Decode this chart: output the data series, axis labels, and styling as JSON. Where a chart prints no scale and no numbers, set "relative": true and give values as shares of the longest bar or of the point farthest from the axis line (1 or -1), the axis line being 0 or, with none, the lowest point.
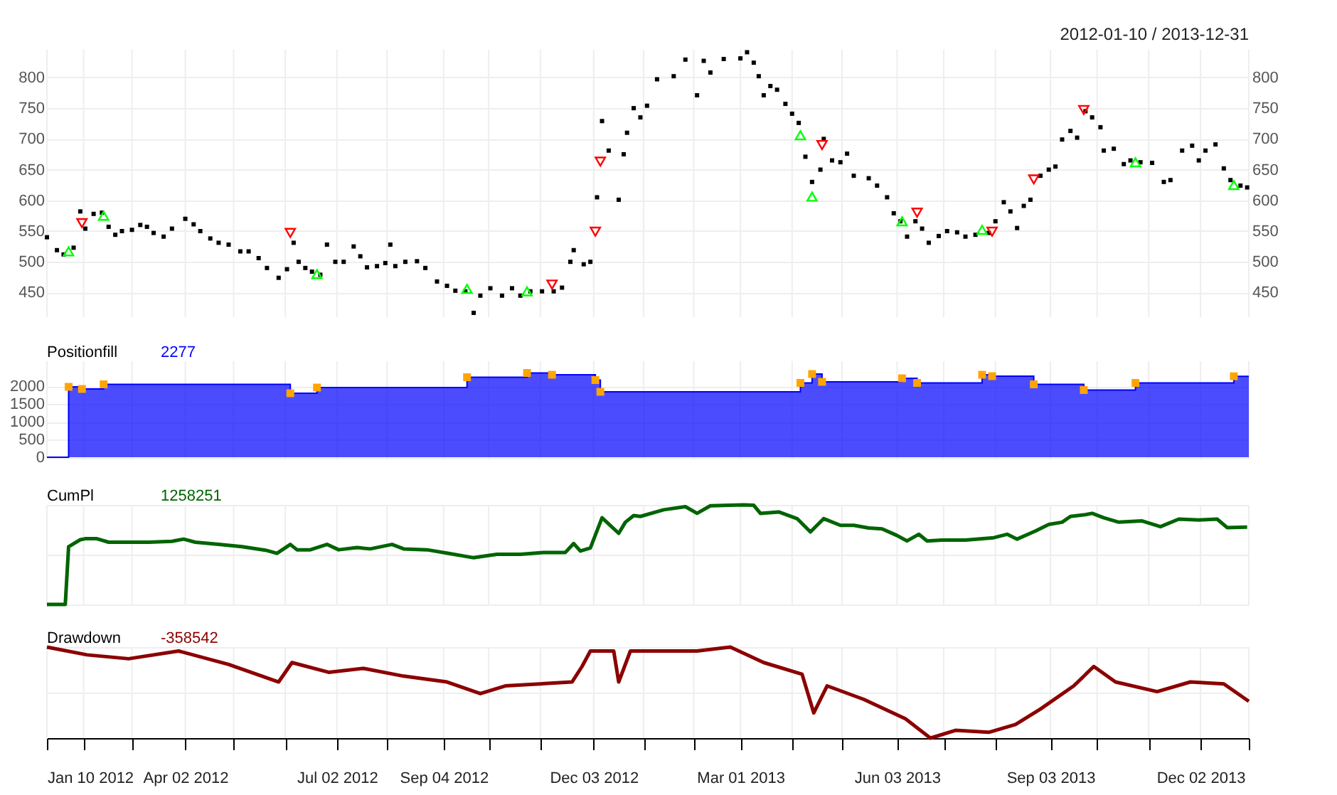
{
  "chart_data": [
    {
      "type": "scatter",
      "subtitle": "2012-01-10 / 2013-12-31",
      "xlim": [
        "2012-01-10",
        "2013-12-31"
      ],
      "xticks": [
        {
          "value": "2012-01-10",
          "label": null
        },
        {
          "value": "2012-02-01",
          "label": null
        },
        {
          "value": "2012-03-01",
          "label": null
        },
        {
          "value": "2012-04-02",
          "label": null
        },
        {
          "value": "2012-05-01",
          "label": null
        },
        {
          "value": "2012-06-01",
          "label": null
        },
        {
          "value": "2012-07-02",
          "label": null
        },
        {
          "value": "2012-08-01",
          "label": null
        },
        {
          "value": "2012-09-04",
          "label": null
        },
        {
          "value": "2012-10-01",
          "label": null
        },
        {
          "value": "2012-11-01",
          "label": null
        },
        {
          "value": "2012-12-03",
          "label": null
        },
        {
          "value": "2013-01-02",
          "label": null
        },
        {
          "value": "2013-02-01",
          "label": null
        },
        {
          "value": "2013-03-01",
          "label": null
        },
        {
          "value": "2013-04-01",
          "label": null
        },
        {
          "value": "2013-05-01",
          "label": null
        },
        {
          "value": "2013-06-03",
          "label": null
        },
        {
          "value": "2013-07-01",
          "label": null
        },
        {
          "value": "2013-08-01",
          "label": null
        },
        {
          "value": "2013-09-03",
          "label": null
        },
        {
          "value": "2013-10-01",
          "label": null
        },
        {
          "value": "2013-11-01",
          "label": null
        },
        {
          "value": "2013-12-02",
          "label": null
        },
        {
          "value": "2013-12-31",
          "label": null
        }
      ],
      "ylim": [
        410,
        845
      ],
      "yticks": [
        450,
        500,
        550,
        600,
        650,
        700,
        750,
        800
      ],
      "y2lim": [
        410,
        845
      ],
      "y2ticks": [
        450,
        500,
        550,
        600,
        650,
        700,
        750,
        800
      ],
      "grid": true,
      "tick_labels": "y",
      "series": [
        {
          "color": "#000000",
          "x": [
            "2012-01-10",
            "2012-01-16",
            "2012-01-20",
            "2012-01-26",
            "2012-01-30",
            "2012-02-02",
            "2012-02-07",
            "2012-02-12",
            "2012-02-16",
            "2012-02-20",
            "2012-02-24",
            "2012-03-01",
            "2012-03-06",
            "2012-03-10",
            "2012-03-14",
            "2012-03-20",
            "2012-03-25",
            "2012-04-02",
            "2012-04-07",
            "2012-04-11",
            "2012-04-17",
            "2012-04-22",
            "2012-04-28",
            "2012-05-05",
            "2012-05-10",
            "2012-05-16",
            "2012-05-21",
            "2012-05-28",
            "2012-06-02",
            "2012-06-06",
            "2012-06-09",
            "2012-06-13",
            "2012-06-17",
            "2012-06-22",
            "2012-06-26",
            "2012-07-01",
            "2012-07-06",
            "2012-07-12",
            "2012-07-16",
            "2012-07-20",
            "2012-07-26",
            "2012-07-31",
            "2012-08-03",
            "2012-08-06",
            "2012-08-12",
            "2012-08-19",
            "2012-08-24",
            "2012-08-31",
            "2012-09-06",
            "2012-09-11",
            "2012-09-17",
            "2012-09-22",
            "2012-09-26",
            "2012-10-02",
            "2012-10-09",
            "2012-10-15",
            "2012-10-20",
            "2012-10-26",
            "2012-11-02",
            "2012-11-09",
            "2012-11-14",
            "2012-11-19",
            "2012-11-21",
            "2012-11-27",
            "2012-12-01",
            "2012-12-05",
            "2012-12-08",
            "2012-12-12",
            "2012-12-18",
            "2012-12-21",
            "2012-12-23",
            "2012-12-27",
            "2012-12-31",
            "2013-01-04",
            "2013-01-10",
            "2013-01-20",
            "2013-01-27",
            "2013-02-03",
            "2013-02-07",
            "2013-02-11",
            "2013-02-19",
            "2013-03-01",
            "2013-03-05",
            "2013-03-09",
            "2013-03-12",
            "2013-03-15",
            "2013-03-19",
            "2013-03-23",
            "2013-03-28",
            "2013-04-01",
            "2013-04-05",
            "2013-04-09",
            "2013-04-13",
            "2013-04-18",
            "2013-04-20",
            "2013-04-25",
            "2013-04-30",
            "2013-05-04",
            "2013-05-08",
            "2013-05-17",
            "2013-05-22",
            "2013-05-28",
            "2013-06-01",
            "2013-06-05",
            "2013-06-09",
            "2013-06-14",
            "2013-06-18",
            "2013-06-22",
            "2013-06-28",
            "2013-07-03",
            "2013-07-09",
            "2013-07-14",
            "2013-07-20",
            "2013-07-28",
            "2013-08-01",
            "2013-08-06",
            "2013-08-10",
            "2013-08-14",
            "2013-08-18",
            "2013-08-22",
            "2013-08-28",
            "2013-09-02",
            "2013-09-06",
            "2013-09-10",
            "2013-09-15",
            "2013-09-19",
            "2013-09-24",
            "2013-09-28",
            "2013-10-03",
            "2013-10-05",
            "2013-10-11",
            "2013-10-17",
            "2013-10-21",
            "2013-10-27",
            "2013-11-03",
            "2013-11-10",
            "2013-11-14",
            "2013-11-21",
            "2013-11-27",
            "2013-12-01",
            "2013-12-05",
            "2013-12-11",
            "2013-12-16",
            "2013-12-20",
            "2013-12-26",
            "2013-12-30"
          ],
          "values": [
            540,
            519,
            512,
            523,
            582,
            554,
            578,
            580,
            557,
            544,
            550,
            552,
            560,
            557,
            547,
            541,
            554,
            570,
            561,
            550,
            538,
            531,
            528,
            517,
            517,
            506,
            490,
            474,
            488,
            531,
            500,
            490,
            484,
            479,
            528,
            500,
            500,
            525,
            509,
            491,
            493,
            498,
            528,
            493,
            500,
            501,
            490,
            468,
            461,
            453,
            452,
            417,
            445,
            457,
            445,
            457,
            445,
            452,
            452,
            452,
            458,
            500,
            519,
            496,
            500,
            605,
            729,
            681,
            601,
            675,
            710,
            750,
            735,
            754,
            797,
            802,
            829,
            771,
            827,
            808,
            830,
            831,
            841,
            824,
            802,
            771,
            786,
            780,
            757,
            741,
            726,
            671,
            630,
            650,
            700,
            665,
            662,
            676,
            640,
            636,
            624,
            605,
            579,
            566,
            541,
            566,
            554,
            531,
            542,
            550,
            548,
            541,
            544,
            547,
            566,
            597,
            582,
            555,
            591,
            601,
            640,
            650,
            655,
            699,
            713,
            702,
            745,
            735,
            719,
            681,
            684,
            659,
            665,
            662,
            661,
            630,
            633,
            681,
            689,
            665,
            681,
            691,
            652,
            633,
            624,
            621
          ]
        },
        {
          "color": "#00ff00",
          "marker": "triangle",
          "x": [
            "2012-01-23",
            "2012-02-13",
            "2012-06-20",
            "2012-09-18",
            "2012-10-24",
            "2013-04-06",
            "2013-04-13",
            "2013-06-06",
            "2013-07-24",
            "2013-10-24",
            "2013-12-22"
          ],
          "values": [
            517,
            575,
            480,
            456,
            452,
            706,
            606,
            566,
            552,
            662,
            625
          ]
        },
        {
          "color": "#ff0000",
          "marker": "triangle-down",
          "x": [
            "2012-01-31",
            "2012-06-04",
            "2012-11-08",
            "2012-12-04",
            "2012-12-07",
            "2013-04-19",
            "2013-06-15",
            "2013-07-30",
            "2013-08-24",
            "2013-09-23"
          ],
          "values": [
            563,
            547,
            463,
            549,
            663,
            690,
            580,
            549,
            634,
            747
          ]
        }
      ]
    },
    {
      "type": "step",
      "title": "Positionfill",
      "annotations": [
        "2277"
      ],
      "xlim": [
        "2012-01-10",
        "2013-12-31"
      ],
      "xticks": [
        {
          "value": "2012-01-10",
          "label": null
        },
        {
          "value": "2012-02-01",
          "label": null
        },
        {
          "value": "2012-03-01",
          "label": null
        },
        {
          "value": "2012-04-02",
          "label": null
        },
        {
          "value": "2012-05-01",
          "label": null
        },
        {
          "value": "2012-06-01",
          "label": null
        },
        {
          "value": "2012-07-02",
          "label": null
        },
        {
          "value": "2012-08-01",
          "label": null
        },
        {
          "value": "2012-09-04",
          "label": null
        },
        {
          "value": "2012-10-01",
          "label": null
        },
        {
          "value": "2012-11-01",
          "label": null
        },
        {
          "value": "2012-12-03",
          "label": null
        },
        {
          "value": "2013-01-02",
          "label": null
        },
        {
          "value": "2013-02-01",
          "label": null
        },
        {
          "value": "2013-03-01",
          "label": null
        },
        {
          "value": "2013-04-01",
          "label": null
        },
        {
          "value": "2013-05-01",
          "label": null
        },
        {
          "value": "2013-06-03",
          "label": null
        },
        {
          "value": "2013-07-01",
          "label": null
        },
        {
          "value": "2013-08-01",
          "label": null
        },
        {
          "value": "2013-09-03",
          "label": null
        },
        {
          "value": "2013-10-01",
          "label": null
        },
        {
          "value": "2013-11-01",
          "label": null
        },
        {
          "value": "2013-12-02",
          "label": null
        },
        {
          "value": "2013-12-31",
          "label": null
        }
      ],
      "ylim": [
        -20,
        2700
      ],
      "yticks": [
        0,
        500,
        1000,
        1500,
        2000
      ],
      "grid": true,
      "tick_labels": "y",
      "series": [
        {
          "type": "step",
          "color": "#0000ff",
          "x": [
            "2012-01-10",
            "2012-01-23",
            "2012-01-31",
            "2012-02-13",
            "2012-06-04",
            "2012-06-20",
            "2012-09-18",
            "2012-10-24",
            "2012-11-08",
            "2012-12-04",
            "2012-12-07",
            "2013-04-06",
            "2013-04-13",
            "2013-04-19",
            "2013-06-06",
            "2013-06-15",
            "2013-07-24",
            "2013-07-30",
            "2013-08-24",
            "2013-09-23",
            "2013-10-24",
            "2013-12-22",
            "2013-12-31"
          ],
          "values": [
            0,
            1980,
            1920,
            2050,
            1800,
            1960,
            2250,
            2370,
            2320,
            2170,
            1840,
            2090,
            2340,
            2120,
            2220,
            2090,
            2320,
            2280,
            2050,
            1890,
            2090,
            2277,
            2277
          ]
        },
        {
          "type": "scatter",
          "marker": "square",
          "color": "#ffa500",
          "x": [
            "2012-01-23",
            "2012-01-31",
            "2012-02-13",
            "2012-06-04",
            "2012-06-20",
            "2012-09-18",
            "2012-10-24",
            "2012-11-08",
            "2012-12-04",
            "2012-12-07",
            "2013-04-06",
            "2013-04-13",
            "2013-04-19",
            "2013-06-06",
            "2013-06-15",
            "2013-07-24",
            "2013-07-30",
            "2013-08-24",
            "2013-09-23",
            "2013-10-24",
            "2013-12-22"
          ],
          "values": [
            1980,
            1920,
            2050,
            1800,
            1960,
            2250,
            2370,
            2320,
            2170,
            1840,
            2090,
            2340,
            2120,
            2220,
            2090,
            2320,
            2280,
            2050,
            1890,
            2090,
            2277
          ]
        }
      ]
    },
    {
      "type": "line",
      "title": "CumPl",
      "annotations": [
        "1258251"
      ],
      "relative": true,
      "xlim": [
        "2012-01-10",
        "2013-12-31"
      ],
      "xticks": [
        {
          "value": "2012-01-10",
          "label": null
        },
        {
          "value": "2012-02-01",
          "label": null
        },
        {
          "value": "2012-03-01",
          "label": null
        },
        {
          "value": "2012-04-02",
          "label": null
        },
        {
          "value": "2012-05-01",
          "label": null
        },
        {
          "value": "2012-06-01",
          "label": null
        },
        {
          "value": "2012-07-02",
          "label": null
        },
        {
          "value": "2012-08-01",
          "label": null
        },
        {
          "value": "2012-09-04",
          "label": null
        },
        {
          "value": "2012-10-01",
          "label": null
        },
        {
          "value": "2012-11-01",
          "label": null
        },
        {
          "value": "2012-12-03",
          "label": null
        },
        {
          "value": "2013-01-02",
          "label": null
        },
        {
          "value": "2013-02-01",
          "label": null
        },
        {
          "value": "2013-03-01",
          "label": null
        },
        {
          "value": "2013-04-01",
          "label": null
        },
        {
          "value": "2013-05-01",
          "label": null
        },
        {
          "value": "2013-06-03",
          "label": null
        },
        {
          "value": "2013-07-01",
          "label": null
        },
        {
          "value": "2013-08-01",
          "label": null
        },
        {
          "value": "2013-09-03",
          "label": null
        },
        {
          "value": "2013-10-01",
          "label": null
        },
        {
          "value": "2013-11-01",
          "label": null
        },
        {
          "value": "2013-12-02",
          "label": null
        },
        {
          "value": "2013-12-31",
          "label": null
        }
      ],
      "grid": true,
      "tick_labels": false,
      "series": [
        {
          "color": "#006400",
          "x": [
            "2012-01-10",
            "2012-01-21",
            "2012-01-23",
            "2012-01-30",
            "2012-02-02",
            "2012-02-09",
            "2012-02-16",
            "2012-02-26",
            "2012-03-11",
            "2012-03-25",
            "2012-04-01",
            "2012-04-08",
            "2012-04-22",
            "2012-05-06",
            "2012-05-20",
            "2012-05-27",
            "2012-06-04",
            "2012-06-08",
            "2012-06-16",
            "2012-06-26",
            "2012-07-03",
            "2012-07-14",
            "2012-07-22",
            "2012-08-04",
            "2012-08-11",
            "2012-08-25",
            "2012-09-07",
            "2012-09-22",
            "2012-09-27",
            "2012-10-06",
            "2012-10-20",
            "2012-11-03",
            "2012-11-16",
            "2012-11-21",
            "2012-11-25",
            "2012-12-01",
            "2012-12-08",
            "2012-12-18",
            "2012-12-22",
            "2012-12-27",
            "2012-12-31",
            "2013-01-14",
            "2013-01-27",
            "2013-02-03",
            "2013-02-11",
            "2013-03-03",
            "2013-03-09",
            "2013-03-13",
            "2013-03-24",
            "2013-04-04",
            "2013-04-12",
            "2013-04-20",
            "2013-04-30",
            "2013-05-08",
            "2013-05-17",
            "2013-05-25",
            "2013-06-03",
            "2013-06-09",
            "2013-06-16",
            "2013-06-21",
            "2013-06-30",
            "2013-07-14",
            "2013-07-31",
            "2013-08-08",
            "2013-08-14",
            "2013-08-25",
            "2013-09-02",
            "2013-09-10",
            "2013-09-15",
            "2013-09-24",
            "2013-09-28",
            "2013-10-05",
            "2013-10-14",
            "2013-10-28",
            "2013-11-08",
            "2013-11-19",
            "2013-12-01",
            "2013-12-12",
            "2013-12-18",
            "2013-12-30"
          ],
          "values": [
            0,
            0,
            0.58,
            0.65,
            0.66,
            0.66,
            0.625,
            0.625,
            0.625,
            0.634,
            0.656,
            0.625,
            0.603,
            0.58,
            0.545,
            0.513,
            0.603,
            0.549,
            0.549,
            0.603,
            0.549,
            0.571,
            0.558,
            0.603,
            0.558,
            0.549,
            0.513,
            0.469,
            0.482,
            0.504,
            0.504,
            0.522,
            0.522,
            0.612,
            0.536,
            0.567,
            0.871,
            0.714,
            0.826,
            0.893,
            0.884,
            0.951,
            0.982,
            0.915,
            0.991,
            1.0,
            0.996,
            0.915,
            0.929,
            0.862,
            0.728,
            0.862,
            0.795,
            0.795,
            0.768,
            0.759,
            0.692,
            0.638,
            0.705,
            0.638,
            0.647,
            0.647,
            0.67,
            0.705,
            0.656,
            0.737,
            0.804,
            0.826,
            0.884,
            0.902,
            0.915,
            0.871,
            0.826,
            0.839,
            0.781,
            0.857,
            0.848,
            0.857,
            0.772,
            0.777
          ]
        }
      ]
    },
    {
      "type": "line",
      "title": "Drawdown",
      "annotations": [
        "-358542"
      ],
      "relative": true,
      "xlim": [
        "2012-01-10",
        "2013-12-31"
      ],
      "xticks": [
        {
          "value": "2012-01-10",
          "label": "Jan 10 2012"
        },
        {
          "value": "2012-02-01",
          "label": null
        },
        {
          "value": "2012-03-01",
          "label": null
        },
        {
          "value": "2012-04-02",
          "label": "Apr 02 2012"
        },
        {
          "value": "2012-05-01",
          "label": null
        },
        {
          "value": "2012-06-01",
          "label": null
        },
        {
          "value": "2012-07-02",
          "label": "Jul 02 2012"
        },
        {
          "value": "2012-08-01",
          "label": null
        },
        {
          "value": "2012-09-04",
          "label": "Sep 04 2012"
        },
        {
          "value": "2012-10-01",
          "label": null
        },
        {
          "value": "2012-11-01",
          "label": null
        },
        {
          "value": "2012-12-03",
          "label": "Dec 03 2012"
        },
        {
          "value": "2013-01-02",
          "label": null
        },
        {
          "value": "2013-02-01",
          "label": null
        },
        {
          "value": "2013-03-01",
          "label": "Mar 01 2013"
        },
        {
          "value": "2013-04-01",
          "label": null
        },
        {
          "value": "2013-05-01",
          "label": null
        },
        {
          "value": "2013-06-03",
          "label": "Jun 03 2013"
        },
        {
          "value": "2013-07-01",
          "label": null
        },
        {
          "value": "2013-08-01",
          "label": null
        },
        {
          "value": "2013-09-03",
          "label": "Sep 03 2013"
        },
        {
          "value": "2013-10-01",
          "label": null
        },
        {
          "value": "2013-11-01",
          "label": null
        },
        {
          "value": "2013-12-02",
          "label": "Dec 02 2013"
        },
        {
          "value": "2013-12-31",
          "label": null
        }
      ],
      "grid": true,
      "tick_labels": "x",
      "series": [
        {
          "color": "#8b0000",
          "x": [
            "2012-01-10",
            "2012-02-03",
            "2012-02-28",
            "2012-03-29",
            "2012-04-28",
            "2012-05-28",
            "2012-06-05",
            "2012-06-27",
            "2012-07-18",
            "2012-08-11",
            "2012-09-06",
            "2012-09-26",
            "2012-10-11",
            "2012-11-20",
            "2012-11-26",
            "2012-12-01",
            "2012-12-15",
            "2012-12-18",
            "2012-12-25",
            "2013-02-03",
            "2013-02-23",
            "2013-03-15",
            "2013-04-07",
            "2013-04-14",
            "2013-04-22",
            "2013-05-14",
            "2013-06-08",
            "2013-06-23",
            "2013-07-08",
            "2013-07-28",
            "2013-08-13",
            "2013-08-28",
            "2013-09-17",
            "2013-09-29",
            "2013-10-12",
            "2013-11-06",
            "2013-11-26",
            "2013-12-16",
            "2013-12-31"
          ],
          "values": [
            1.0,
            0.915,
            0.872,
            0.957,
            0.809,
            0.617,
            0.83,
            0.723,
            0.766,
            0.681,
            0.617,
            0.489,
            0.574,
            0.617,
            0.787,
            0.957,
            0.957,
            0.617,
            0.957,
            0.957,
            1.0,
            0.83,
            0.702,
            0.277,
            0.574,
            0.426,
            0.213,
            0.0,
            0.085,
            0.064,
            0.149,
            0.319,
            0.574,
            0.787,
            0.617,
            0.511,
            0.617,
            0.596,
            0.404
          ]
        }
      ]
    }
  ]
}
